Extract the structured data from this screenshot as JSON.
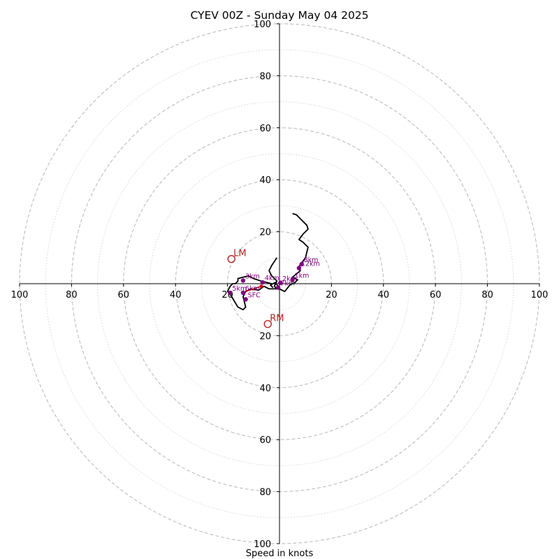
{
  "chart_data": {
    "type": "hodograph",
    "title": "CYEV 00Z - Sunday May 04 2025",
    "xlabel": "Speed in knots",
    "range": [
      -100,
      100
    ],
    "tick_labels": [
      "100",
      "80",
      "60",
      "40",
      "20",
      "20",
      "40",
      "60",
      "80",
      "100"
    ],
    "tick_values": [
      -100,
      -80,
      -60,
      -40,
      -20,
      20,
      40,
      60,
      80,
      100
    ],
    "rings_major": [
      20,
      40,
      60,
      80,
      100
    ],
    "rings_minor": [
      10,
      30,
      50,
      70,
      90
    ],
    "grid": true,
    "trace_color": "#000000",
    "profile": [
      [
        -2.5,
        -1.5
      ],
      [
        -3.5,
        -0.5
      ],
      [
        -1.5,
        0.5
      ],
      [
        0,
        -2
      ],
      [
        2,
        -3
      ],
      [
        4,
        -0.5
      ],
      [
        6,
        0.5
      ],
      [
        7,
        1.5
      ],
      [
        5,
        2.5
      ],
      [
        8,
        5
      ],
      [
        7.5,
        6.5
      ],
      [
        8.5,
        8
      ],
      [
        10,
        10
      ],
      [
        11,
        14
      ],
      [
        9,
        16
      ],
      [
        7.5,
        17
      ],
      [
        9,
        19
      ],
      [
        11,
        21
      ],
      [
        10.5,
        22.5
      ],
      [
        8.5,
        24.5
      ],
      [
        6.5,
        26.5
      ],
      [
        5,
        27
      ]
    ],
    "profile2": [
      [
        -1,
        10
      ],
      [
        -3,
        7
      ],
      [
        -4,
        5
      ],
      [
        -3,
        3
      ],
      [
        -1,
        1
      ],
      [
        -2,
        -1
      ],
      [
        -1,
        -2
      ],
      [
        -4,
        -2
      ],
      [
        -6,
        -1
      ],
      [
        -8,
        -2.5
      ],
      [
        -11,
        -2
      ],
      [
        -13,
        -3
      ],
      [
        -14,
        -5
      ],
      [
        -13,
        -9
      ],
      [
        -14,
        -10
      ],
      [
        -16,
        -9
      ],
      [
        -19,
        -4
      ],
      [
        -20,
        -3
      ],
      [
        -19,
        -1
      ],
      [
        -18,
        0
      ],
      [
        -17,
        0
      ],
      [
        -16,
        1
      ],
      [
        -16,
        2
      ],
      [
        -14,
        2.5
      ],
      [
        -12,
        3
      ],
      [
        -10,
        2
      ],
      [
        -7,
        1
      ],
      [
        -5,
        0.5
      ],
      [
        -3,
        0
      ]
    ],
    "height_markers": [
      {
        "label": "1km",
        "x": 5,
        "y": 1.5
      },
      {
        "label": "2km",
        "x": 0.3,
        "y": 0.3
      },
      {
        "label": "3km",
        "x": -14,
        "y": 1.2
      },
      {
        "label": "4km",
        "x": -6.5,
        "y": 0.5
      },
      {
        "label": "5km",
        "x": -19,
        "y": -3.5
      },
      {
        "label": "6km",
        "x": -14,
        "y": -3.5
      },
      {
        "label": "7km",
        "x": -0.5,
        "y": -1.5
      },
      {
        "label": "8km",
        "x": 8.5,
        "y": 7.5
      },
      {
        "label": "12km",
        "x": 7.5,
        "y": 6.0
      },
      {
        "label": "SFC",
        "x": -13,
        "y": -6
      }
    ],
    "storm_motions": [
      {
        "label": "LM",
        "u": -18.5,
        "v": 9.5,
        "color": "#b22222"
      },
      {
        "label": "RM",
        "u": -4.5,
        "v": -15.5,
        "color": "#b22222"
      }
    ],
    "mean_wind": {
      "u": -7,
      "v": -1,
      "color": "#cc0000"
    },
    "marker_color": "#800080"
  }
}
